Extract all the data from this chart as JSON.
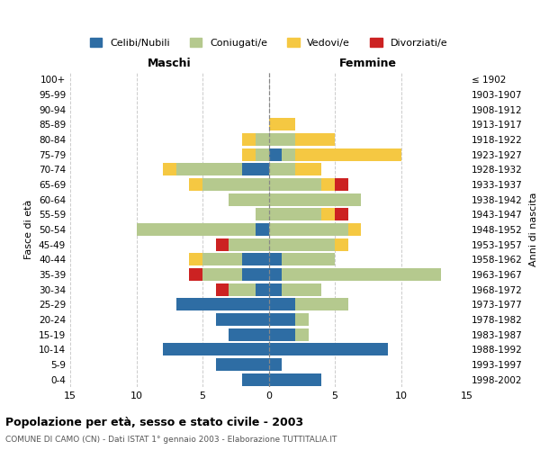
{
  "age_groups": [
    "0-4",
    "5-9",
    "10-14",
    "15-19",
    "20-24",
    "25-29",
    "30-34",
    "35-39",
    "40-44",
    "45-49",
    "50-54",
    "55-59",
    "60-64",
    "65-69",
    "70-74",
    "75-79",
    "80-84",
    "85-89",
    "90-94",
    "95-99",
    "100+"
  ],
  "birth_years": [
    "1998-2002",
    "1993-1997",
    "1988-1992",
    "1983-1987",
    "1978-1982",
    "1973-1977",
    "1968-1972",
    "1963-1967",
    "1958-1962",
    "1953-1957",
    "1948-1952",
    "1943-1947",
    "1938-1942",
    "1933-1937",
    "1928-1932",
    "1923-1927",
    "1918-1922",
    "1913-1917",
    "1908-1912",
    "1903-1907",
    "≤ 1902"
  ],
  "male_celibi": [
    2,
    4,
    8,
    3,
    4,
    7,
    1,
    2,
    2,
    0,
    1,
    0,
    0,
    0,
    2,
    0,
    0,
    0,
    0,
    0,
    0
  ],
  "male_coniugati": [
    0,
    0,
    0,
    0,
    0,
    0,
    2,
    3,
    3,
    3,
    9,
    1,
    3,
    5,
    5,
    1,
    1,
    0,
    0,
    0,
    0
  ],
  "male_vedovi": [
    0,
    0,
    0,
    0,
    0,
    0,
    0,
    0,
    1,
    0,
    0,
    0,
    0,
    1,
    1,
    1,
    1,
    0,
    0,
    0,
    0
  ],
  "male_divorziati": [
    0,
    0,
    0,
    0,
    0,
    0,
    1,
    1,
    0,
    1,
    0,
    0,
    0,
    0,
    0,
    0,
    0,
    0,
    0,
    0,
    0
  ],
  "female_celibi": [
    4,
    1,
    9,
    2,
    2,
    2,
    1,
    1,
    1,
    0,
    0,
    0,
    0,
    0,
    0,
    1,
    0,
    0,
    0,
    0,
    0
  ],
  "female_coniugati": [
    0,
    0,
    0,
    1,
    1,
    4,
    3,
    12,
    4,
    5,
    6,
    4,
    7,
    4,
    2,
    1,
    2,
    0,
    0,
    0,
    0
  ],
  "female_vedovi": [
    0,
    0,
    0,
    0,
    0,
    0,
    0,
    0,
    0,
    1,
    1,
    1,
    0,
    1,
    2,
    8,
    3,
    2,
    0,
    0,
    0
  ],
  "female_divorziati": [
    0,
    0,
    0,
    0,
    0,
    0,
    0,
    0,
    0,
    0,
    0,
    1,
    0,
    1,
    0,
    0,
    0,
    0,
    0,
    0,
    0
  ],
  "color_celibi": "#2e6da4",
  "color_coniugati": "#b5c98e",
  "color_vedovi": "#f5c842",
  "color_divorziati": "#cc2222",
  "title": "Popolazione per età, sesso e stato civile - 2003",
  "subtitle": "COMUNE DI CAMO (CN) - Dati ISTAT 1° gennaio 2003 - Elaborazione TUTTITALIA.IT",
  "xlabel_left": "Maschi",
  "xlabel_right": "Femmine",
  "ylabel_left": "Fasce di età",
  "ylabel_right": "Anni di nascita",
  "xlim": 15,
  "bg_color": "#ffffff",
  "grid_color": "#cccccc"
}
